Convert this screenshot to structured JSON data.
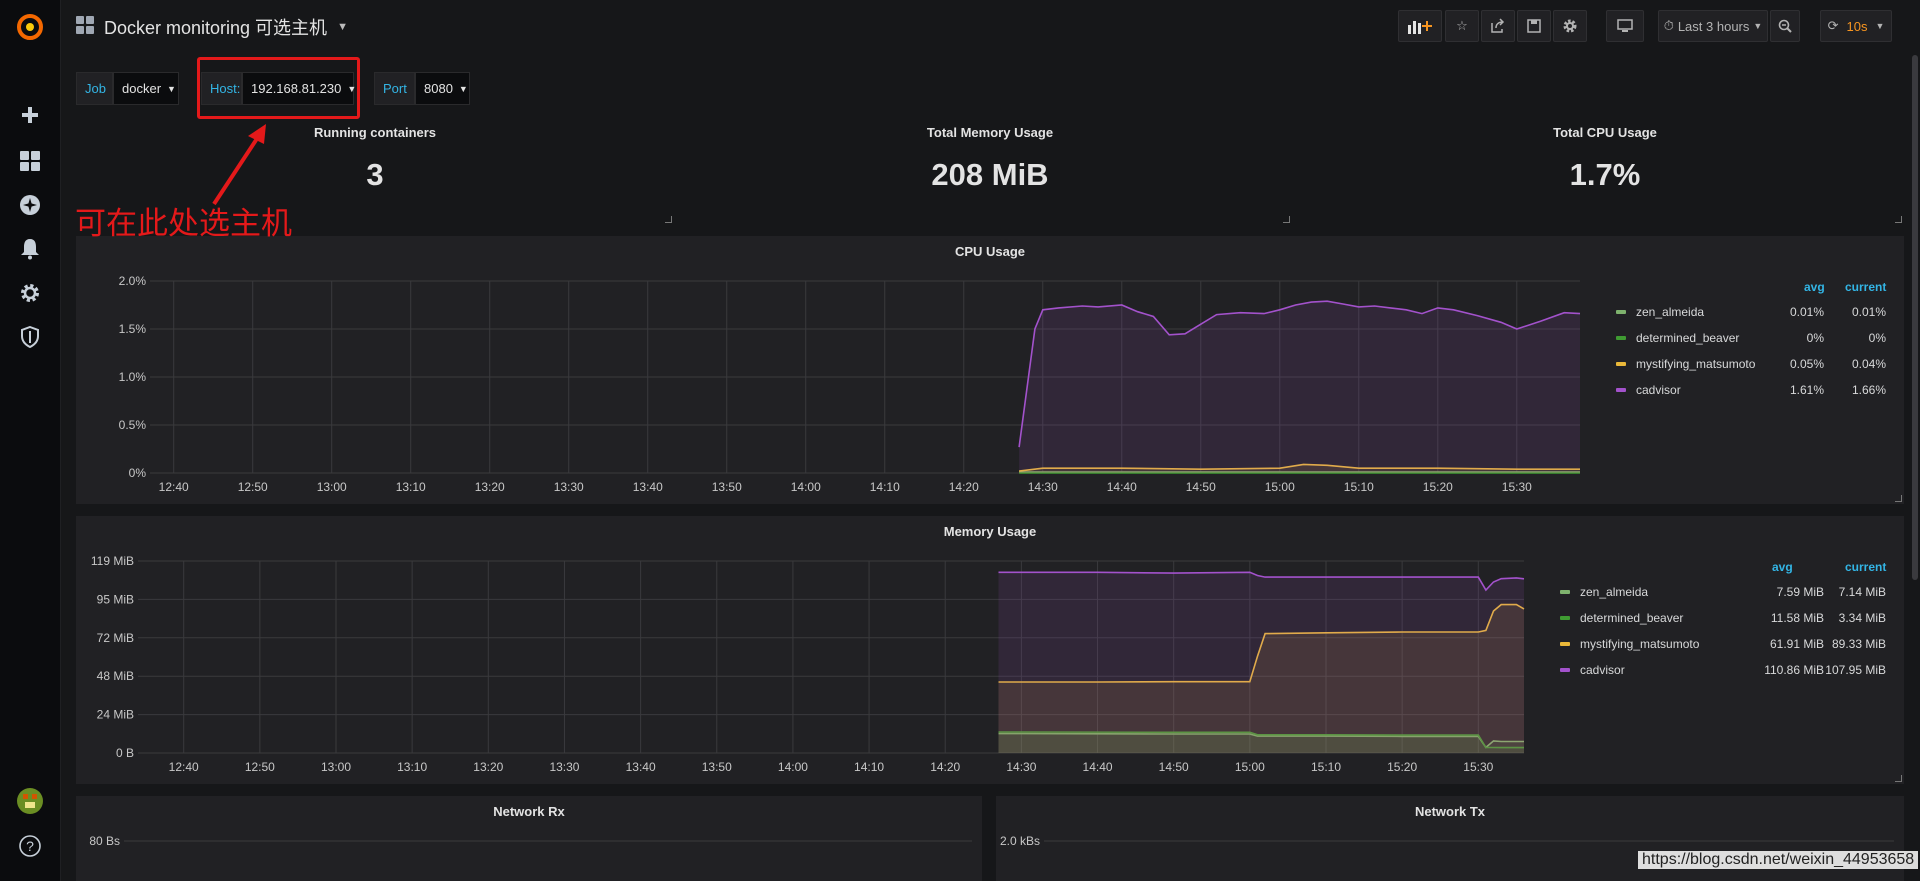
{
  "dashboard": {
    "title": "Docker monitoring 可选主机"
  },
  "nav": {
    "time_range": "Last 3 hours",
    "refresh": "10s"
  },
  "variables": [
    {
      "label": "Job",
      "value": "docker"
    },
    {
      "label": "Host:",
      "value": "192.168.81.230"
    },
    {
      "label": "Port",
      "value": "8080"
    }
  ],
  "stats": [
    {
      "title": "Running containers",
      "value": "3"
    },
    {
      "title": "Total Memory Usage",
      "value": "208 MiB"
    },
    {
      "title": "Total CPU Usage",
      "value": "1.7%"
    }
  ],
  "legend_headers": {
    "avg": "avg",
    "current": "current"
  },
  "panels": {
    "cpu": {
      "title": "CPU Usage"
    },
    "memory": {
      "title": "Memory Usage"
    },
    "network_rx": {
      "title": "Network Rx"
    },
    "network_tx": {
      "title": "Network Tx"
    }
  },
  "chart_data": [
    {
      "type": "line",
      "title": "CPU Usage",
      "x_ticks": [
        "12:40",
        "12:50",
        "13:00",
        "13:10",
        "13:20",
        "13:30",
        "13:40",
        "13:50",
        "14:00",
        "14:10",
        "14:20",
        "14:30",
        "14:40",
        "14:50",
        "15:00",
        "15:10",
        "15:20",
        "15:30"
      ],
      "y_ticks": [
        "0%",
        "0.5%",
        "1.0%",
        "1.5%",
        "2.0%"
      ],
      "ylim": [
        0,
        2.0
      ],
      "x_range": [
        "12:37",
        "15:38"
      ],
      "series": [
        {
          "name": "zen_almeida",
          "avg": "0.01%",
          "current": "0.01%",
          "color": "#7eb26d",
          "x": [
            "14:27",
            "15:38"
          ],
          "values": [
            0.01,
            0.01
          ]
        },
        {
          "name": "determined_beaver",
          "avg": "0%",
          "current": "0%",
          "color": "#3f9b32",
          "x": [
            "14:27",
            "15:38"
          ],
          "values": [
            0,
            0
          ]
        },
        {
          "name": "mystifying_matsumoto",
          "avg": "0.05%",
          "current": "0.04%",
          "color": "#eab839",
          "x": [
            "14:27",
            "14:30",
            "14:40",
            "14:50",
            "15:00",
            "15:03",
            "15:06",
            "15:10",
            "15:20",
            "15:30",
            "15:38"
          ],
          "values": [
            0.02,
            0.05,
            0.05,
            0.04,
            0.05,
            0.09,
            0.08,
            0.05,
            0.05,
            0.04,
            0.04
          ]
        },
        {
          "name": "cadvisor",
          "avg": "1.61%",
          "current": "1.66%",
          "color": "#a352cc",
          "x": [
            "14:27",
            "14:29",
            "14:30",
            "14:32",
            "14:35",
            "14:37",
            "14:40",
            "14:42",
            "14:44",
            "14:46",
            "14:48",
            "14:50",
            "14:52",
            "14:55",
            "14:58",
            "15:00",
            "15:02",
            "15:04",
            "15:06",
            "15:08",
            "15:10",
            "15:12",
            "15:14",
            "15:16",
            "15:18",
            "15:20",
            "15:22",
            "15:25",
            "15:28",
            "15:30",
            "15:33",
            "15:36",
            "15:38"
          ],
          "values": [
            0.27,
            1.5,
            1.7,
            1.72,
            1.74,
            1.73,
            1.75,
            1.68,
            1.63,
            1.44,
            1.45,
            1.55,
            1.65,
            1.67,
            1.66,
            1.7,
            1.75,
            1.78,
            1.79,
            1.76,
            1.73,
            1.74,
            1.72,
            1.7,
            1.66,
            1.72,
            1.7,
            1.64,
            1.57,
            1.5,
            1.58,
            1.67,
            1.66
          ]
        }
      ]
    },
    {
      "type": "line",
      "title": "Memory Usage",
      "x_ticks": [
        "12:40",
        "12:50",
        "13:00",
        "13:10",
        "13:20",
        "13:30",
        "13:40",
        "13:50",
        "14:00",
        "14:10",
        "14:20",
        "14:30",
        "14:40",
        "14:50",
        "15:00",
        "15:10",
        "15:20",
        "15:30"
      ],
      "y_ticks": [
        "0 B",
        "24 MiB",
        "48 MiB",
        "72 MiB",
        "95 MiB",
        "119 MiB"
      ],
      "ylim": [
        0,
        119
      ],
      "x_range": [
        "12:34",
        "15:36"
      ],
      "series": [
        {
          "name": "zen_almeida",
          "avg": "7.59 MiB",
          "current": "7.14 MiB",
          "color": "#7eb26d",
          "x": [
            "14:27",
            "14:30",
            "14:50",
            "15:00",
            "15:01",
            "15:10",
            "15:20",
            "15:30",
            "15:31",
            "15:32",
            "15:33",
            "15:36"
          ],
          "values": [
            12,
            12,
            11.8,
            11.8,
            10.5,
            10.5,
            10.3,
            10.3,
            3.5,
            7.5,
            7.1,
            7.14
          ]
        },
        {
          "name": "determined_beaver",
          "avg": "11.58 MiB",
          "current": "3.34 MiB",
          "color": "#3f9b32",
          "x": [
            "14:27",
            "14:30",
            "14:50",
            "15:00",
            "15:01",
            "15:10",
            "15:20",
            "15:30",
            "15:31",
            "15:32",
            "15:33",
            "15:36"
          ],
          "values": [
            13,
            13,
            12.8,
            12.8,
            11.3,
            11.3,
            11.1,
            11.1,
            3.4,
            3.4,
            3.34,
            3.34
          ]
        },
        {
          "name": "mystifying_matsumoto",
          "avg": "61.91 MiB",
          "current": "89.33 MiB",
          "color": "#eab839",
          "x": [
            "14:27",
            "14:40",
            "14:50",
            "15:00",
            "15:01",
            "15:02",
            "15:10",
            "15:20",
            "15:30",
            "15:31",
            "15:32",
            "15:33",
            "15:35",
            "15:36"
          ],
          "values": [
            44,
            44,
            44.2,
            44.2,
            60,
            74,
            74.5,
            75,
            75,
            76,
            88,
            92,
            92,
            89.33
          ]
        },
        {
          "name": "cadvisor",
          "avg": "110.86 MiB",
          "current": "107.95 MiB",
          "color": "#a352cc",
          "x": [
            "14:27",
            "14:40",
            "14:50",
            "15:00",
            "15:01",
            "15:02",
            "15:10",
            "15:20",
            "15:30",
            "15:31",
            "15:32",
            "15:33",
            "15:35",
            "15:36"
          ],
          "values": [
            112,
            112,
            111.5,
            112,
            110,
            109,
            109,
            109,
            109,
            101,
            106,
            108,
            108.5,
            107.95
          ]
        }
      ]
    },
    {
      "type": "line",
      "title": "Network Rx",
      "y_ticks": [
        "80 Bs"
      ],
      "series": []
    },
    {
      "type": "line",
      "title": "Network Tx",
      "y_ticks": [
        "2.0 kBs"
      ],
      "series": []
    }
  ],
  "annotation": {
    "text": "可在此处选主机"
  },
  "watermark": "https://blog.csdn.net/weixin_44953658"
}
